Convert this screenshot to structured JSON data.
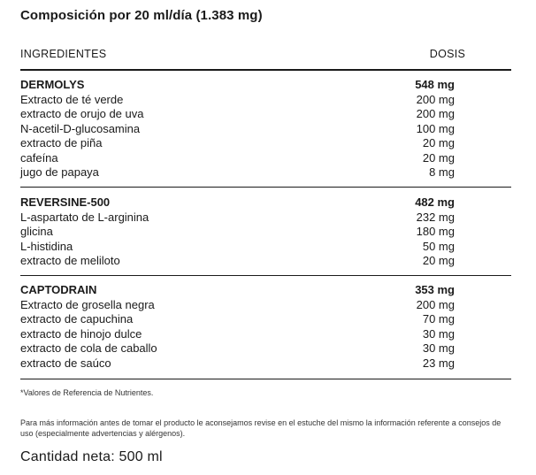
{
  "title": "Composición por 20 ml/día (1.383 mg)",
  "columns": {
    "ingredients": "INGREDIENTES",
    "dose": "DOSIS"
  },
  "groups": [
    {
      "name": "DERMOLYS",
      "total": "548 mg",
      "items": [
        {
          "name": "Extracto de té verde",
          "dose": "200 mg"
        },
        {
          "name": "extracto de orujo de uva",
          "dose": "200 mg"
        },
        {
          "name": "N-acetil-D-glucosamina",
          "dose": "100 mg"
        },
        {
          "name": "extracto de piña",
          "dose": "20 mg"
        },
        {
          "name": "cafeína",
          "dose": "20 mg"
        },
        {
          "name": "jugo de papaya",
          "dose": "8 mg"
        }
      ]
    },
    {
      "name": "REVERSINE-500",
      "total": "482 mg",
      "items": [
        {
          "name": "L-aspartato de L-arginina",
          "dose": "232 mg"
        },
        {
          "name": "glicina",
          "dose": "180 mg"
        },
        {
          "name": "L-histidina",
          "dose": "50 mg"
        },
        {
          "name": "extracto de meliloto",
          "dose": "20 mg"
        }
      ]
    },
    {
      "name": "CAPTODRAIN",
      "total": "353 mg",
      "items": [
        {
          "name": "Extracto de grosella negra",
          "dose": "200 mg"
        },
        {
          "name": "extracto de capuchina",
          "dose": "70 mg"
        },
        {
          "name": "extracto de hinojo dulce",
          "dose": "30 mg"
        },
        {
          "name": "extracto de cola de caballo",
          "dose": "30 mg"
        },
        {
          "name": "extracto de saúco",
          "dose": "23 mg"
        }
      ]
    }
  ],
  "footnote": "*Valores de Referencia de Nutrientes.",
  "info": "Para más información antes de tomar el producto le aconsejamos revise en el estuche del mismo la información referente a consejos de uso (especialmente advertencias y alérgenos).",
  "net_content": "Cantidad neta: 500 ml"
}
